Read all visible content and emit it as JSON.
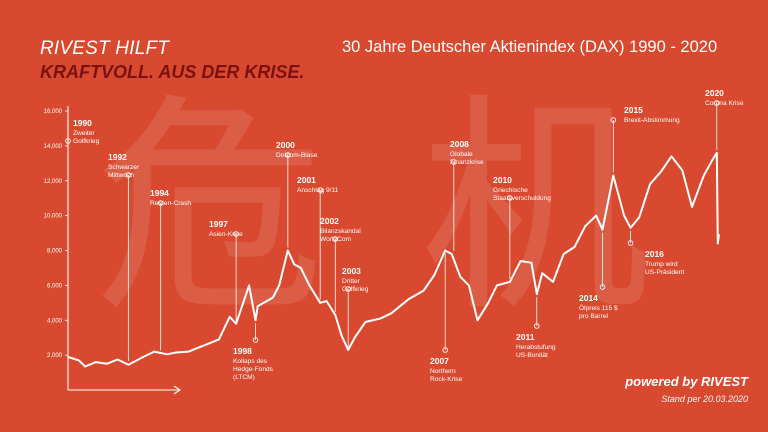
{
  "brand": {
    "line1": "RIVEST HILFT",
    "line2": "KRAFTVOLL. AUS DER KRISE.",
    "powered": "powered by RIVEST",
    "stand": "Stand per 20.03.2020"
  },
  "decor": {
    "glyph1": "危",
    "glyph2": "机"
  },
  "colors": {
    "background": "#d8492f",
    "line": "#ffffff",
    "brand_dark": "#7a1212"
  },
  "chart_data": {
    "type": "line",
    "title": "30 Jahre Deutscher Aktienindex (DAX) 1990 - 2020",
    "xlabel": "",
    "ylabel": "",
    "xlim": [
      1990,
      2020.25
    ],
    "ylim": [
      0,
      16000
    ],
    "yticks": [
      "2,000",
      "4,000",
      "6,000",
      "8,000",
      "10,000",
      "12,000",
      "14,000",
      "16,000"
    ],
    "grid": false,
    "series": [
      {
        "x": [
          1990.0,
          1990.5,
          1990.8,
          1991.3,
          1991.8,
          1992.3,
          1992.8,
          1993.5,
          1994.0,
          1994.6,
          1995.0,
          1995.6,
          1996.0,
          1996.6,
          1997.0,
          1997.5,
          1997.8,
          1998.4,
          1998.7,
          1998.8,
          1999.5,
          1999.8,
          2000.2,
          2000.5,
          2000.8,
          2001.2,
          2001.7,
          2002.0,
          2002.4,
          2002.7,
          2003.0,
          2003.3,
          2003.8,
          2004.5,
          2005.0,
          2005.8,
          2006.5,
          2007.0,
          2007.5,
          2007.8,
          2008.2,
          2008.6,
          2009.0,
          2009.5,
          2009.9,
          2010.5,
          2011.0,
          2011.5,
          2011.75,
          2012.0,
          2012.5,
          2013.0,
          2013.5,
          2014.0,
          2014.5,
          2014.8,
          2015.3,
          2015.8,
          2016.1,
          2016.5,
          2017.0,
          2017.5,
          2018.0,
          2018.5,
          2018.95,
          2019.5,
          2019.9,
          2020.1,
          2020.15,
          2020.2
        ],
        "values": [
          1900,
          1700,
          1350,
          1600,
          1500,
          1750,
          1450,
          1900,
          2200,
          2050,
          2150,
          2200,
          2400,
          2700,
          2900,
          4200,
          3800,
          6000,
          4000,
          4800,
          5300,
          6000,
          8000,
          7200,
          7000,
          6000,
          5000,
          5100,
          4300,
          3100,
          2300,
          3000,
          3900,
          4100,
          4400,
          5200,
          5700,
          6600,
          8000,
          7800,
          6500,
          6000,
          4000,
          5000,
          6000,
          6200,
          7400,
          7300,
          5500,
          6700,
          6200,
          7800,
          8200,
          9400,
          10000,
          9200,
          12300,
          10000,
          9300,
          9900,
          11800,
          12500,
          13400,
          12600,
          10500,
          12300,
          13200,
          13600,
          8400,
          8900
        ]
      }
    ],
    "annotations": [
      {
        "year": "1990",
        "text": "Zweiter Golfkrieg",
        "x": 1990.0,
        "y": 1500
      },
      {
        "year": "1992",
        "text": "Schwarzer Mittwoch",
        "x": 1992.8,
        "y": 1500
      },
      {
        "year": "1994",
        "text": "Renten-Crash",
        "x": 1994.3,
        "y": 2100
      },
      {
        "year": "1997",
        "text": "Asien-Krise",
        "x": 1997.8,
        "y": 3800
      },
      {
        "year": "1998",
        "text": "Kollaps des Hedge-Fonds (LTCM)",
        "x": 1998.7,
        "y": 4000
      },
      {
        "year": "2000",
        "text": "Dotcom-Blase",
        "x": 2000.2,
        "y": 8000
      },
      {
        "year": "2001",
        "text": "Anschlag 9/11",
        "x": 2001.7,
        "y": 5000
      },
      {
        "year": "2002",
        "text": "Bilanzskandal WorldCom",
        "x": 2002.4,
        "y": 4300
      },
      {
        "year": "2003",
        "text": "Dritter Golfkrieg",
        "x": 2003.0,
        "y": 2300
      },
      {
        "year": "2007",
        "text": "Northern Rock-Krise",
        "x": 2007.5,
        "y": 8000
      },
      {
        "year": "2008",
        "text": "Globale Finanzkrise",
        "x": 2007.9,
        "y": 7800
      },
      {
        "year": "2010",
        "text": "Griechische Staatsverschuldung",
        "x": 2010.5,
        "y": 6200
      },
      {
        "year": "2011",
        "text": "Herabstufung US-Bonität",
        "x": 2011.75,
        "y": 5500
      },
      {
        "year": "2014",
        "text": "Ölpreis 115 $ pro Barrel",
        "x": 2014.8,
        "y": 9200
      },
      {
        "year": "2015",
        "text": "Brexit-Abstimmung",
        "x": 2015.3,
        "y": 12300
      },
      {
        "year": "2016",
        "text": "Trump wird US-Präsident",
        "x": 2016.1,
        "y": 9300
      },
      {
        "year": "2020",
        "text": "Corona Krise",
        "x": 2020.1,
        "y": 13600
      }
    ]
  }
}
